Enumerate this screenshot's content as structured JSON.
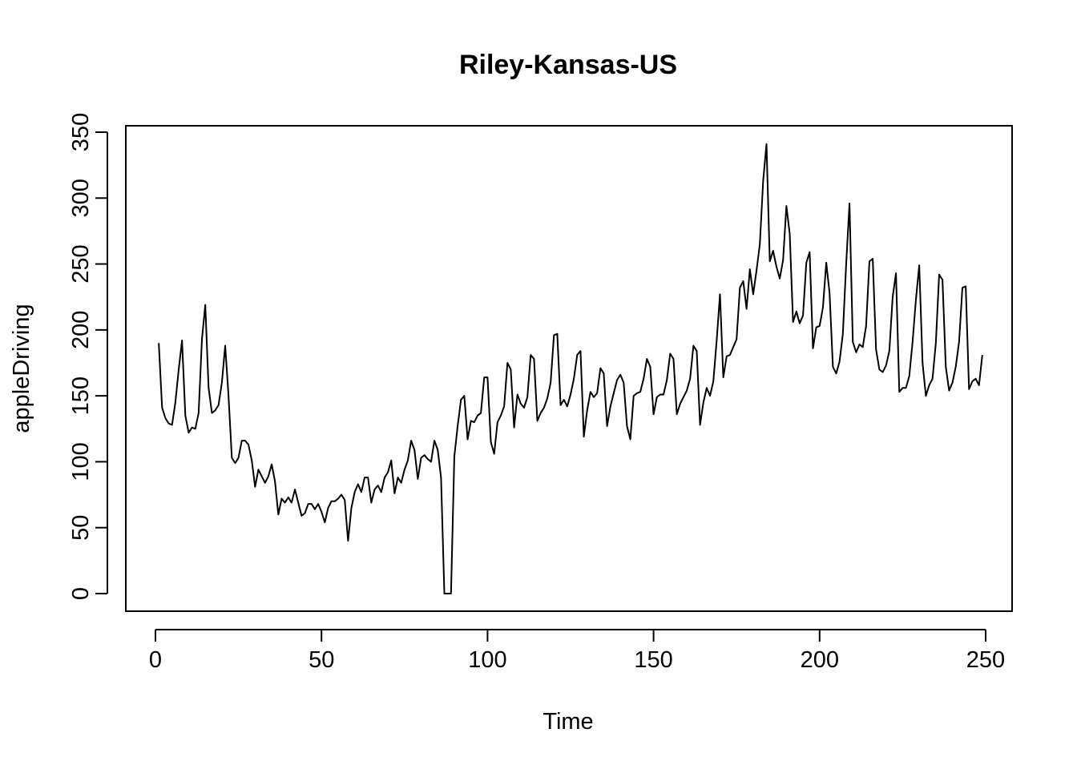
{
  "chart_data": {
    "type": "line",
    "title": "Riley-Kansas-US",
    "xlabel": "Time",
    "ylabel": "appleDriving",
    "xlim": [
      0,
      250
    ],
    "ylim": [
      0,
      350
    ],
    "x_ticks": [
      0,
      50,
      100,
      150,
      200,
      250
    ],
    "y_ticks": [
      0,
      50,
      100,
      150,
      200,
      250,
      300,
      350
    ],
    "grid": false,
    "legend": "none",
    "color": "#000000",
    "series": [
      {
        "x_start": 1,
        "values": [
          190,
          141,
          133,
          129,
          128,
          145,
          170,
          192,
          135,
          122,
          126,
          125,
          137,
          193,
          219,
          156,
          137,
          139,
          143,
          160,
          188,
          150,
          103,
          99,
          103,
          116,
          116,
          113,
          101,
          81,
          94,
          89,
          84,
          89,
          98,
          85,
          60,
          72,
          69,
          73,
          69,
          79,
          69,
          59,
          61,
          68,
          68,
          64,
          68,
          62,
          54,
          65,
          70,
          70,
          72,
          75,
          71,
          40,
          65,
          77,
          83,
          77,
          88,
          88,
          69,
          79,
          82,
          77,
          88,
          92,
          101,
          76,
          88,
          84,
          94,
          101,
          116,
          109,
          87,
          103,
          105,
          102,
          100,
          116,
          109,
          88,
          0,
          0,
          0,
          104,
          127,
          147,
          150,
          117,
          131,
          130,
          135,
          137,
          164,
          164,
          115,
          106,
          130,
          135,
          142,
          175,
          170,
          126,
          151,
          144,
          141,
          149,
          181,
          178,
          131,
          137,
          141,
          148,
          160,
          196,
          197,
          143,
          147,
          142,
          151,
          163,
          181,
          184,
          119,
          139,
          153,
          149,
          152,
          171,
          167,
          127,
          142,
          152,
          162,
          166,
          160,
          127,
          117,
          150,
          152,
          153,
          163,
          178,
          172,
          136,
          149,
          151,
          151,
          162,
          182,
          178,
          136,
          144,
          149,
          154,
          163,
          188,
          184,
          128,
          145,
          156,
          150,
          161,
          192,
          227,
          164,
          180,
          181,
          187,
          193,
          232,
          237,
          216,
          246,
          227,
          245,
          265,
          313,
          341,
          252,
          260,
          248,
          239,
          253,
          294,
          273,
          206,
          214,
          205,
          211,
          251,
          259,
          186,
          202,
          203,
          217,
          251,
          228,
          172,
          167,
          176,
          197,
          250,
          296,
          191,
          183,
          189,
          187,
          203,
          252,
          254,
          185,
          170,
          168,
          173,
          184,
          225,
          243,
          153,
          156,
          156,
          165,
          191,
          223,
          249,
          175,
          150,
          158,
          163,
          190,
          242,
          238,
          172,
          154,
          160,
          172,
          191,
          232,
          233,
          155,
          161,
          163,
          158,
          181
        ]
      }
    ]
  }
}
